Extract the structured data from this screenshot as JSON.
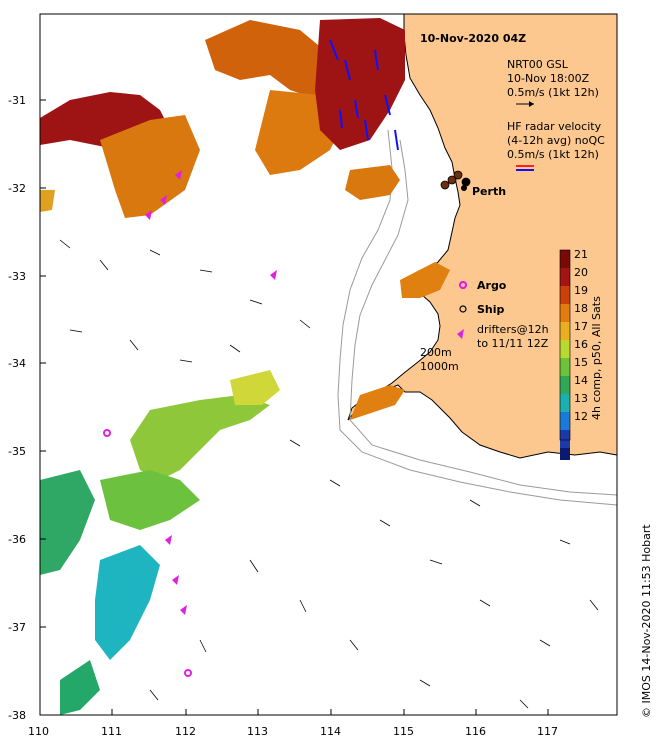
{
  "title": "10-Nov-2020 04Z",
  "place_label": "Perth",
  "legend": {
    "gsl_line1": "NRT00 GSL",
    "gsl_line2": "10-Nov 18:00Z",
    "gsl_line3": "0.5m/s (1kt 12h)",
    "hf_line1": "HF radar velocity",
    "hf_line2": "(4-12h avg) noQC",
    "hf_line3": "0.5m/s (1kt 12h)",
    "argo": "Argo",
    "ship": "Ship",
    "drifters_line1": "drifters@12h",
    "drifters_line2": "to 11/11 12Z",
    "contour_200": "200m",
    "contour_1000": "1000m"
  },
  "colorbar": {
    "title": "4h comp, p50, All Sats",
    "ticks": [
      "21",
      "20",
      "19",
      "18",
      "17",
      "16",
      "15",
      "14",
      "13",
      "12"
    ],
    "stops": [
      "#7a0a0a",
      "#a31414",
      "#c8400c",
      "#e07c10",
      "#e8b020",
      "#b9d832",
      "#6ac33a",
      "#2fa85a",
      "#1bb0b0",
      "#1a7ad8",
      "#1b3aa8",
      "#0b1a6e"
    ]
  },
  "axes": {
    "lon_ticks": [
      "110",
      "111",
      "112",
      "113",
      "114",
      "115",
      "116",
      "117"
    ],
    "lat_ticks": [
      "-31",
      "-32",
      "-33",
      "-34",
      "-35",
      "-36",
      "-37",
      "-38"
    ]
  },
  "credit": "© IMOS 14-Nov-2020 11:53 Hobart",
  "colors": {
    "land": "#fcc890",
    "argo": "#e020e0",
    "hf_red": "#ff2020",
    "hf_blue": "#1010ff"
  }
}
